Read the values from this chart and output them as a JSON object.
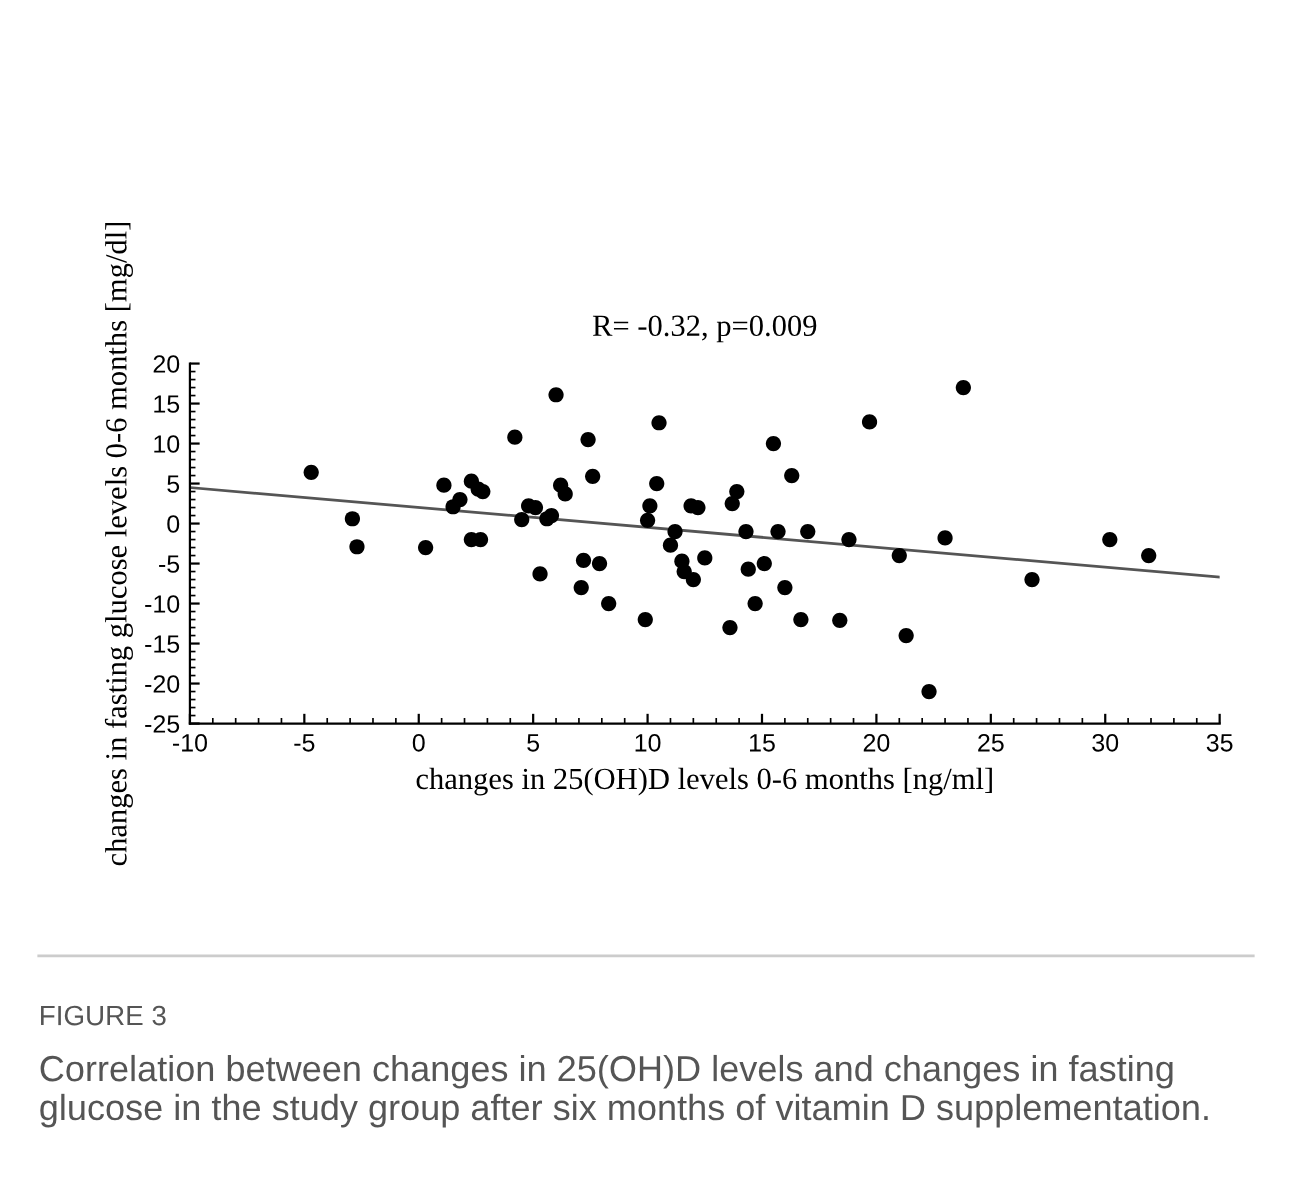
{
  "chart_data": {
    "type": "scatter",
    "title": "R= -0.32, p=0.009",
    "xlabel": "changes in 25(OH)D levels 0-6 months [ng/ml]",
    "ylabel": "changes in fasting glucose levels 0-6 months [mg/dl]",
    "annotations": [
      "FIGURE 3",
      "Correlation between changes in 25(OH)D levels and changes in fasting glucose in the study group after six months of vitamin D supplementation."
    ],
    "xlim": [
      -10,
      35
    ],
    "xticks": [
      -10,
      -5,
      0,
      5,
      10,
      15,
      20,
      25,
      30,
      35
    ],
    "ylim": [
      -25,
      20
    ],
    "yticks": [
      -25,
      -20,
      -15,
      -10,
      -5,
      0,
      5,
      10,
      15,
      20
    ],
    "grid": false,
    "legend": false,
    "marker": "circle",
    "series": [
      {
        "color": "#000000",
        "x": [
          -4.7,
          -2.9,
          -2.7,
          0.3,
          1.1,
          1.5,
          1.8,
          2.3,
          2.3,
          2.6,
          2.8,
          2.7,
          4.2,
          4.5,
          4.8,
          5.1,
          5.3,
          5.6,
          5.8,
          6.0,
          6.2,
          6.4,
          7.1,
          7.2,
          7.4,
          7.6,
          7.9,
          8.3,
          9.9,
          10.0,
          10.1,
          10.4,
          10.5,
          11.0,
          11.2,
          11.5,
          11.6,
          11.9,
          12.0,
          12.2,
          12.5,
          13.6,
          13.7,
          13.9,
          14.3,
          14.4,
          14.7,
          15.1,
          15.5,
          15.7,
          16.0,
          16.3,
          16.7,
          17.0,
          18.4,
          18.8,
          19.7,
          21.0,
          21.3,
          22.3,
          23.0,
          23.8,
          26.8,
          30.2,
          31.9
        ],
        "values": [
          6.4,
          0.6,
          -2.9,
          -3,
          4.8,
          2.1,
          3,
          -2,
          5.3,
          4.3,
          4,
          -2,
          10.8,
          0.5,
          2.2,
          2,
          -6.3,
          0.6,
          1,
          16.1,
          4.8,
          3.7,
          -8,
          -4.6,
          10.5,
          5.9,
          -5,
          -10,
          -12,
          0.4,
          2.2,
          5,
          12.6,
          -2.7,
          -1,
          -4.7,
          -6,
          2.2,
          -7,
          2,
          -4.3,
          -13,
          2.5,
          4,
          -1,
          -5.7,
          -10,
          -5,
          10,
          -1,
          -8,
          6,
          -12,
          -1,
          -12.1,
          -2,
          12.7,
          -4,
          -14,
          -21,
          -1.8,
          17,
          -7,
          -2,
          -4
        ]
      },
      {
        "type": "line",
        "color": "#555555",
        "marker": "none",
        "x": [
          -10,
          35
        ],
        "values": [
          4.5,
          -6.7
        ]
      }
    ]
  }
}
